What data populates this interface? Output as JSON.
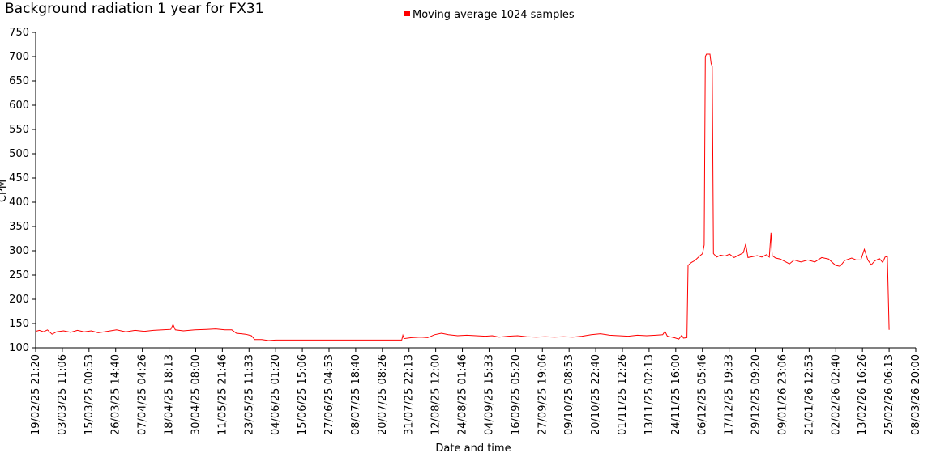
{
  "chart_data": {
    "type": "line",
    "title": "Background radiation 1 year for FX31",
    "xlabel": "Date and time",
    "ylabel": "CPM",
    "ylim": [
      100,
      750
    ],
    "yticks": [
      100,
      150,
      200,
      250,
      300,
      350,
      400,
      450,
      500,
      550,
      600,
      650,
      700,
      750
    ],
    "grid": false,
    "legend_position": "top",
    "xticks": [
      "19/02/25 21:20",
      "03/03/25 11:06",
      "15/03/25 00:53",
      "26/03/25 14:40",
      "07/04/25 04:26",
      "18/04/25 18:13",
      "30/04/25 08:00",
      "11/05/25 21:46",
      "23/05/25 11:33",
      "04/06/25 01:20",
      "15/06/25 15:06",
      "27/06/25 04:53",
      "08/07/25 18:40",
      "20/07/25 08:26",
      "31/07/25 22:13",
      "12/08/25 12:00",
      "24/08/25 01:46",
      "04/09/25 15:33",
      "16/09/25 05:20",
      "27/09/25 19:06",
      "09/10/25 08:53",
      "20/10/25 22:40",
      "01/11/25 12:26",
      "13/11/25 02:13",
      "24/11/25 16:00",
      "06/12/25 05:46",
      "17/12/25 19:33",
      "29/12/25 09:20",
      "09/01/26 23:06",
      "21/01/26 12:53",
      "02/02/26 02:40",
      "13/02/26 16:26",
      "25/02/26 06:13",
      "08/03/26 20:00"
    ],
    "series": [
      {
        "name": "Moving average 1024 samples",
        "color": "#ff0000",
        "points": [
          [
            "19/02/25 21:20",
            134
          ],
          [
            "21/02/25 12:00",
            136
          ],
          [
            "23/02/25 08:00",
            133
          ],
          [
            "25/02/25 00:00",
            137
          ],
          [
            "27/02/25 00:00",
            128
          ],
          [
            "01/03/25 00:00",
            133
          ],
          [
            "04/03/25 00:00",
            135
          ],
          [
            "07/03/25 00:00",
            132
          ],
          [
            "10/03/25 00:00",
            136
          ],
          [
            "13/03/25 00:00",
            133
          ],
          [
            "16/03/25 00:00",
            135
          ],
          [
            "19/03/25 00:00",
            131
          ],
          [
            "23/03/25 00:00",
            134
          ],
          [
            "27/03/25 00:00",
            137
          ],
          [
            "31/03/25 00:00",
            133
          ],
          [
            "04/04/25 00:00",
            136
          ],
          [
            "08/04/25 00:00",
            134
          ],
          [
            "12/04/25 00:00",
            136
          ],
          [
            "16/04/25 00:00",
            137
          ],
          [
            "19/04/25 12:00",
            138
          ],
          [
            "20/04/25 12:00",
            148
          ],
          [
            "21/04/25 12:00",
            137
          ],
          [
            "25/04/25 00:00",
            135
          ],
          [
            "30/04/25 00:00",
            137
          ],
          [
            "05/05/25 00:00",
            138
          ],
          [
            "09/05/25 00:00",
            139
          ],
          [
            "13/05/25 00:00",
            137
          ],
          [
            "16/05/25 00:00",
            137
          ],
          [
            "18/05/25 00:00",
            130
          ],
          [
            "22/05/25 00:00",
            128
          ],
          [
            "24/05/25 12:00",
            125
          ],
          [
            "26/05/25 00:00",
            117
          ],
          [
            "29/05/25 00:00",
            117
          ],
          [
            "01/06/25 00:00",
            115
          ],
          [
            "04/06/25 00:00",
            116
          ],
          [
            "10/06/25 00:00",
            116
          ],
          [
            "20/06/25 00:00",
            116
          ],
          [
            "01/07/25 00:00",
            116
          ],
          [
            "10/07/25 00:00",
            116
          ],
          [
            "20/07/25 00:00",
            116
          ],
          [
            "28/07/25 00:00",
            116
          ],
          [
            "28/07/25 18:00",
            116
          ],
          [
            "29/07/25 06:00",
            126
          ],
          [
            "29/07/25 18:00",
            119
          ],
          [
            "02/08/25 00:00",
            121
          ],
          [
            "06/08/25 00:00",
            122
          ],
          [
            "09/08/25 00:00",
            121
          ],
          [
            "12/08/25 00:00",
            127
          ],
          [
            "15/08/25 00:00",
            130
          ],
          [
            "18/08/25 00:00",
            127
          ],
          [
            "22/08/25 00:00",
            125
          ],
          [
            "26/08/25 00:00",
            126
          ],
          [
            "30/08/25 00:00",
            125
          ],
          [
            "03/09/25 00:00",
            124
          ],
          [
            "06/09/25 00:00",
            125
          ],
          [
            "09/09/25 00:00",
            122
          ],
          [
            "13/09/25 00:00",
            124
          ],
          [
            "17/09/25 00:00",
            125
          ],
          [
            "21/09/25 00:00",
            123
          ],
          [
            "25/09/25 00:00",
            122
          ],
          [
            "29/09/25 00:00",
            123
          ],
          [
            "03/10/25 00:00",
            122
          ],
          [
            "07/10/25 00:00",
            123
          ],
          [
            "11/10/25 00:00",
            122
          ],
          [
            "15/10/25 00:00",
            124
          ],
          [
            "19/10/25 00:00",
            127
          ],
          [
            "23/10/25 00:00",
            129
          ],
          [
            "27/10/25 00:00",
            126
          ],
          [
            "31/10/25 00:00",
            125
          ],
          [
            "04/11/25 00:00",
            124
          ],
          [
            "08/11/25 00:00",
            126
          ],
          [
            "12/11/25 00:00",
            125
          ],
          [
            "16/11/25 00:00",
            126
          ],
          [
            "19/11/25 00:00",
            127
          ],
          [
            "20/11/25 00:00",
            134
          ],
          [
            "21/11/25 00:00",
            124
          ],
          [
            "24/11/25 00:00",
            121
          ],
          [
            "26/11/25 00:00",
            118
          ],
          [
            "27/11/25 06:00",
            126
          ],
          [
            "28/11/25 00:00",
            120
          ],
          [
            "29/11/25 12:00",
            121
          ],
          [
            "30/11/25 00:00",
            270
          ],
          [
            "01/12/25 12:00",
            276
          ],
          [
            "03/12/25 00:00",
            280
          ],
          [
            "05/12/25 00:00",
            289
          ],
          [
            "06/12/25 06:00",
            294
          ],
          [
            "07/12/25 00:00",
            312
          ],
          [
            "07/12/25 12:00",
            700
          ],
          [
            "08/12/25 00:00",
            705
          ],
          [
            "09/12/25 12:00",
            705
          ],
          [
            "10/12/25 00:00",
            686
          ],
          [
            "10/12/25 12:00",
            680
          ],
          [
            "11/12/25 00:00",
            294
          ],
          [
            "12/12/25 12:00",
            287
          ],
          [
            "14/12/25 00:00",
            291
          ],
          [
            "16/12/25 00:00",
            289
          ],
          [
            "18/12/25 00:00",
            293
          ],
          [
            "20/12/25 00:00",
            286
          ],
          [
            "22/12/25 00:00",
            291
          ],
          [
            "24/12/25 00:00",
            296
          ],
          [
            "25/12/25 00:00",
            314
          ],
          [
            "26/12/25 00:00",
            286
          ],
          [
            "28/12/25 00:00",
            288
          ],
          [
            "30/12/25 00:00",
            290
          ],
          [
            "01/01/26 00:00",
            287
          ],
          [
            "03/01/26 00:00",
            292
          ],
          [
            "04/01/26 06:00",
            287
          ],
          [
            "05/01/26 00:00",
            337
          ],
          [
            "05/01/26 12:00",
            290
          ],
          [
            "07/01/26 00:00",
            285
          ],
          [
            "09/01/26 00:00",
            283
          ],
          [
            "11/01/26 00:00",
            278
          ],
          [
            "13/01/26 00:00",
            273
          ],
          [
            "15/01/26 00:00",
            281
          ],
          [
            "18/01/26 00:00",
            277
          ],
          [
            "21/01/26 00:00",
            281
          ],
          [
            "24/01/26 00:00",
            277
          ],
          [
            "27/01/26 00:00",
            286
          ],
          [
            "30/01/26 00:00",
            283
          ],
          [
            "02/02/26 00:00",
            270
          ],
          [
            "04/02/26 00:00",
            268
          ],
          [
            "06/02/26 00:00",
            280
          ],
          [
            "09/02/26 00:00",
            285
          ],
          [
            "11/02/26 00:00",
            281
          ],
          [
            "13/02/26 00:00",
            281
          ],
          [
            "14/02/26 12:00",
            303
          ],
          [
            "16/02/26 00:00",
            281
          ],
          [
            "17/02/26 12:00",
            271
          ],
          [
            "19/02/26 00:00",
            279
          ],
          [
            "21/02/26 00:00",
            284
          ],
          [
            "22/02/26 12:00",
            276
          ],
          [
            "23/02/26 12:00",
            287
          ],
          [
            "24/02/26 12:00",
            288
          ],
          [
            "25/02/26 06:00",
            137
          ]
        ]
      }
    ]
  }
}
